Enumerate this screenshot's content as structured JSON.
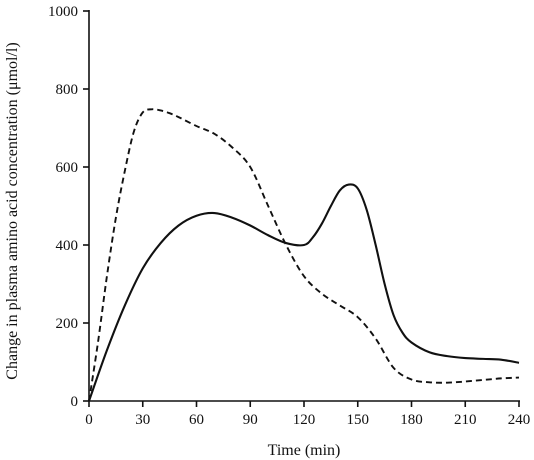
{
  "chart_data": {
    "type": "line",
    "title": "",
    "xlabel": "Time (min)",
    "ylabel": "Change in plasma amino acid concentration (μmol/l)",
    "xlim": [
      0,
      240
    ],
    "ylim": [
      0,
      1000
    ],
    "xticks": [
      0,
      30,
      60,
      90,
      120,
      150,
      180,
      210,
      240
    ],
    "yticks": [
      0,
      200,
      400,
      600,
      800,
      1000
    ],
    "grid": false,
    "legend": "none",
    "series": [
      {
        "style": "solid",
        "color": "#111111",
        "x": [
          0,
          10,
          20,
          30,
          40,
          50,
          60,
          70,
          80,
          90,
          100,
          110,
          120,
          125,
          130,
          135,
          140,
          145,
          150,
          155,
          160,
          165,
          170,
          175,
          180,
          190,
          200,
          210,
          220,
          230,
          240
        ],
        "y": [
          0,
          130,
          245,
          340,
          405,
          450,
          475,
          482,
          470,
          450,
          425,
          405,
          400,
          420,
          455,
          500,
          540,
          555,
          545,
          490,
          400,
          300,
          220,
          175,
          150,
          125,
          115,
          110,
          108,
          106,
          98
        ]
      },
      {
        "style": "dashed",
        "color": "#111111",
        "x": [
          0,
          5,
          10,
          15,
          20,
          25,
          30,
          35,
          40,
          45,
          50,
          60,
          70,
          80,
          90,
          100,
          110,
          120,
          130,
          140,
          150,
          160,
          170,
          180,
          190,
          200,
          210,
          220,
          230,
          240
        ],
        "y": [
          0,
          150,
          320,
          470,
          590,
          690,
          740,
          748,
          745,
          738,
          728,
          705,
          685,
          650,
          600,
          500,
          400,
          320,
          275,
          245,
          215,
          160,
          85,
          55,
          48,
          47,
          50,
          54,
          58,
          60
        ]
      }
    ]
  }
}
